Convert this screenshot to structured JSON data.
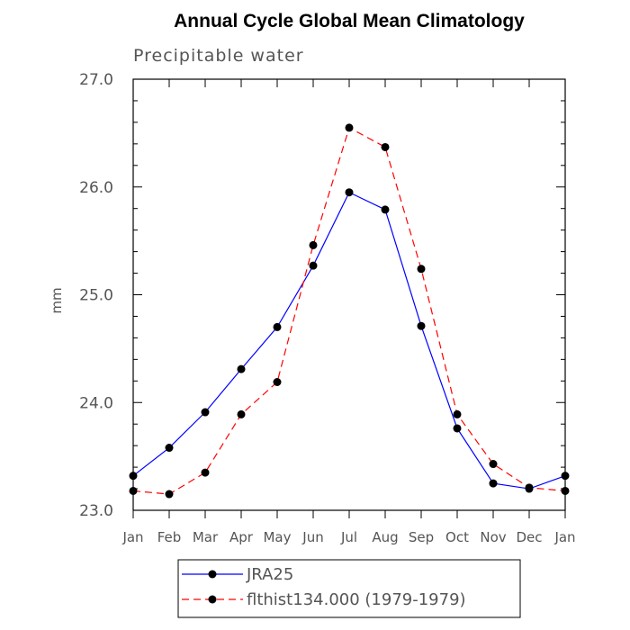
{
  "chart_data": {
    "type": "line",
    "title": "Annual Cycle Global Mean Climatology",
    "subtitle": "Precipitable water",
    "xlabel": "",
    "ylabel": "mm",
    "categories": [
      "Jan",
      "Feb",
      "Mar",
      "Apr",
      "May",
      "Jun",
      "Jul",
      "Aug",
      "Sep",
      "Oct",
      "Nov",
      "Dec",
      "Jan"
    ],
    "ylim": [
      23.0,
      27.0
    ],
    "yticks": [
      "23.0",
      "24.0",
      "25.0",
      "26.0",
      "27.0"
    ],
    "grid": false,
    "legend_position": "bottom",
    "series": [
      {
        "name": "JRA25",
        "color": "#0000ff",
        "style": "solid",
        "marker": "filled-circle",
        "values": [
          23.32,
          23.58,
          23.91,
          24.31,
          24.7,
          25.27,
          25.95,
          25.79,
          24.71,
          23.76,
          23.25,
          23.2,
          23.32
        ]
      },
      {
        "name": "flthist134.000 (1979-1979)",
        "color": "#ff0000",
        "style": "dashed",
        "marker": "filled-circle",
        "values": [
          23.18,
          23.15,
          23.35,
          23.89,
          24.19,
          25.46,
          26.55,
          26.37,
          25.24,
          23.89,
          23.43,
          23.21,
          23.18
        ]
      }
    ]
  }
}
